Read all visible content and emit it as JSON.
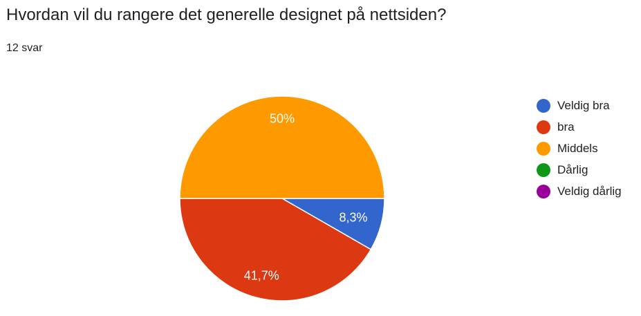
{
  "header": {
    "question": "Hvordan vil du rangere det generelle designet på nettsiden?",
    "responses": "12 svar"
  },
  "chart_data": {
    "type": "pie",
    "title": "Hvordan vil du rangere det generelle designet på nettsiden?",
    "categories": [
      "Veldig bra",
      "bra",
      "Middels",
      "Dårlig",
      "Veldig dårlig"
    ],
    "values": [
      8.3,
      41.7,
      50,
      0,
      0
    ],
    "labels": [
      "8,3%",
      "41,7%",
      "50%",
      "",
      ""
    ],
    "colors": [
      "#3366cc",
      "#dc3912",
      "#ff9900",
      "#109618",
      "#990099"
    ],
    "legend_position": "right"
  }
}
